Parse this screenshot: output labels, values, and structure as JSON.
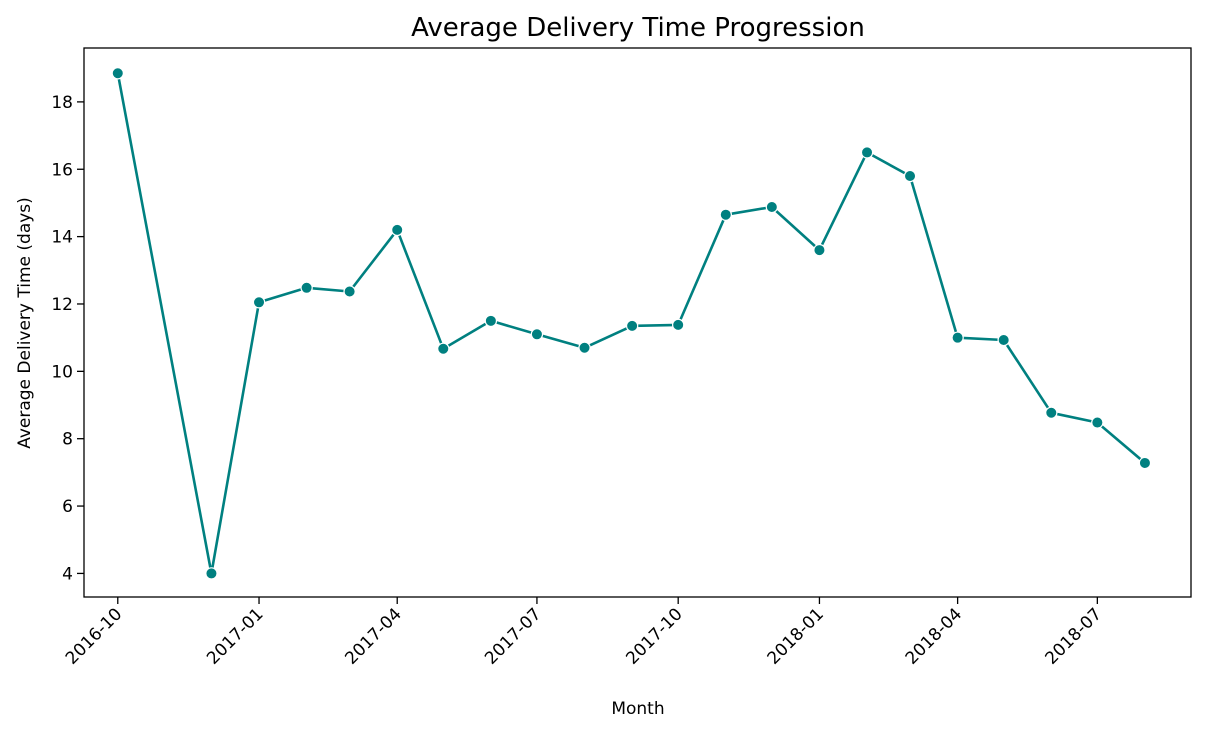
{
  "chart_data": {
    "type": "line",
    "title": "Average Delivery Time Progression",
    "xlabel": "Month",
    "ylabel": "Average Delivery Time (days)",
    "x_ticks": [
      "2016-10",
      "2017-01",
      "2017-04",
      "2017-07",
      "2017-10",
      "2018-01",
      "2018-04",
      "2018-07"
    ],
    "y_ticks": [
      4,
      6,
      8,
      10,
      12,
      14,
      16,
      18
    ],
    "ylim": [
      3.3,
      19.6
    ],
    "xlim": [
      "2016-09-09",
      "2018-08-31"
    ],
    "grid": false,
    "color": "#008080",
    "series": [
      {
        "x": [
          "2016-10-01",
          "2016-12-01",
          "2017-01-01",
          "2017-02-01",
          "2017-03-01",
          "2017-04-01",
          "2017-05-01",
          "2017-06-01",
          "2017-07-01",
          "2017-08-01",
          "2017-09-01",
          "2017-10-01",
          "2017-11-01",
          "2017-12-01",
          "2018-01-01",
          "2018-02-01",
          "2018-03-01",
          "2018-04-01",
          "2018-05-01",
          "2018-06-01",
          "2018-07-01",
          "2018-08-01"
        ],
        "y": [
          18.85,
          4.0,
          12.05,
          12.48,
          12.37,
          14.2,
          10.67,
          11.5,
          11.1,
          10.7,
          11.35,
          11.38,
          14.65,
          14.88,
          13.6,
          16.5,
          15.8,
          11.0,
          10.93,
          8.77,
          8.48,
          7.28
        ]
      }
    ]
  }
}
